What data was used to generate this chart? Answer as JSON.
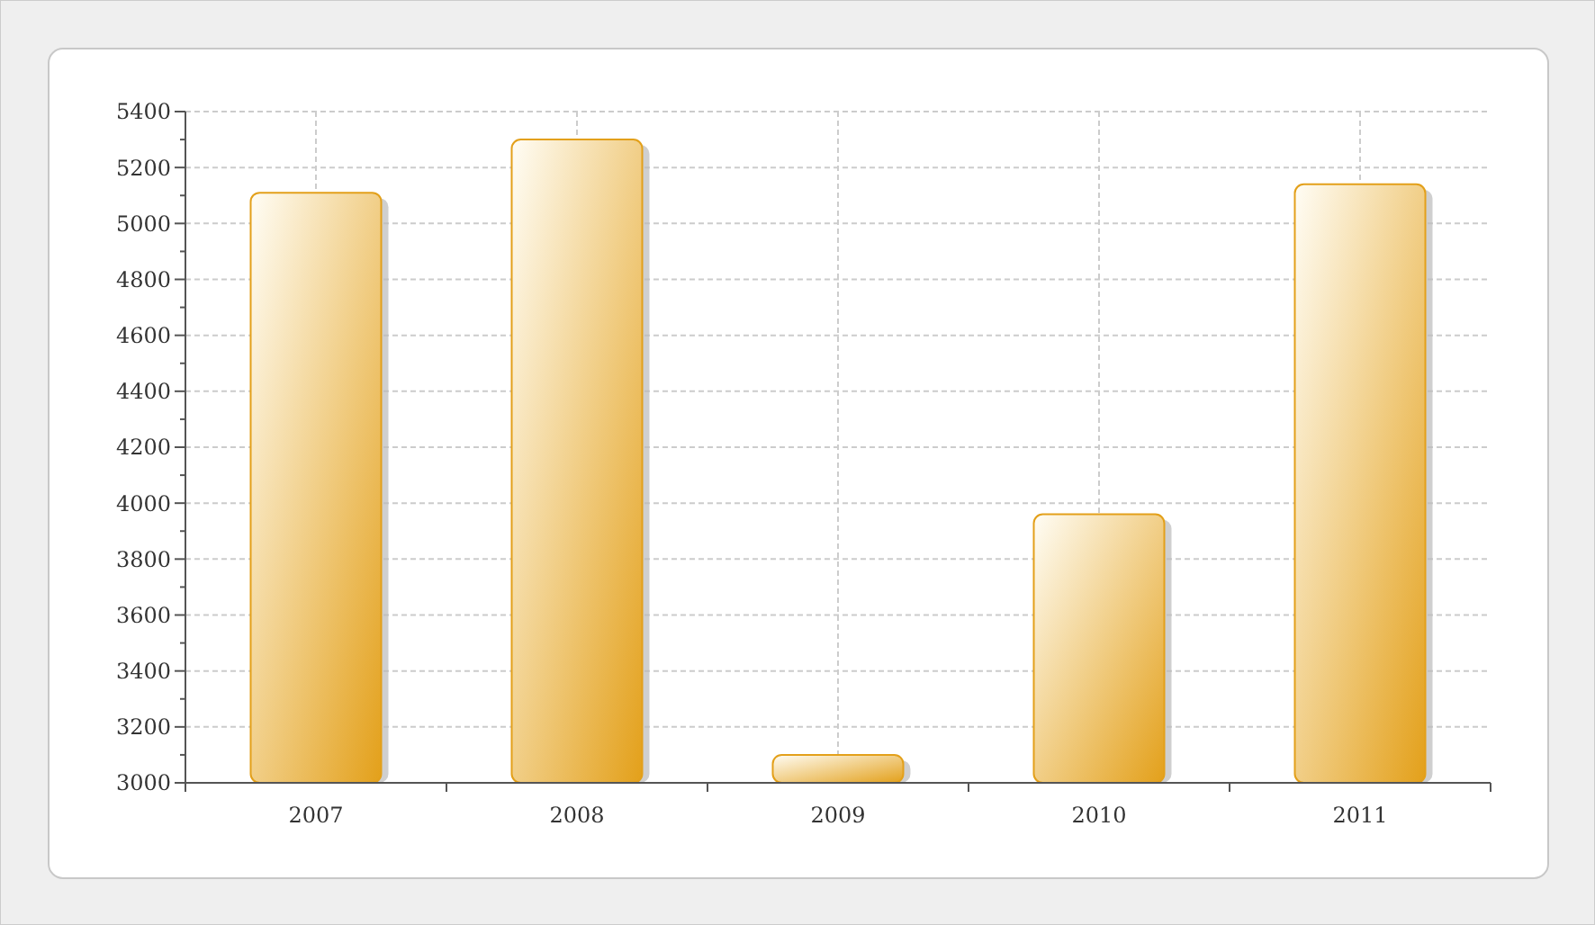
{
  "chart_data": {
    "type": "bar",
    "categories": [
      "2007",
      "2008",
      "2009",
      "2010",
      "2011"
    ],
    "values": [
      5110,
      5300,
      3100,
      3960,
      5140
    ],
    "color": "#e3a01a",
    "ylim": [
      3000,
      5400
    ],
    "yticks": [
      3000,
      {
        "value": 3100,
        "label": null
      },
      3200,
      {
        "value": 3300,
        "label": null
      },
      3400,
      {
        "value": 3500,
        "label": null
      },
      3600,
      {
        "value": 3700,
        "label": null
      },
      3800,
      {
        "value": 3900,
        "label": null
      },
      4000,
      {
        "value": 4100,
        "label": null
      },
      4200,
      {
        "value": 4300,
        "label": null
      },
      4400,
      {
        "value": 4500,
        "label": null
      },
      4600,
      {
        "value": 4700,
        "label": null
      },
      4800,
      {
        "value": 4900,
        "label": null
      },
      5000,
      {
        "value": 5100,
        "label": null
      },
      5200,
      {
        "value": 5300,
        "label": null
      },
      5400
    ],
    "grid": true
  }
}
